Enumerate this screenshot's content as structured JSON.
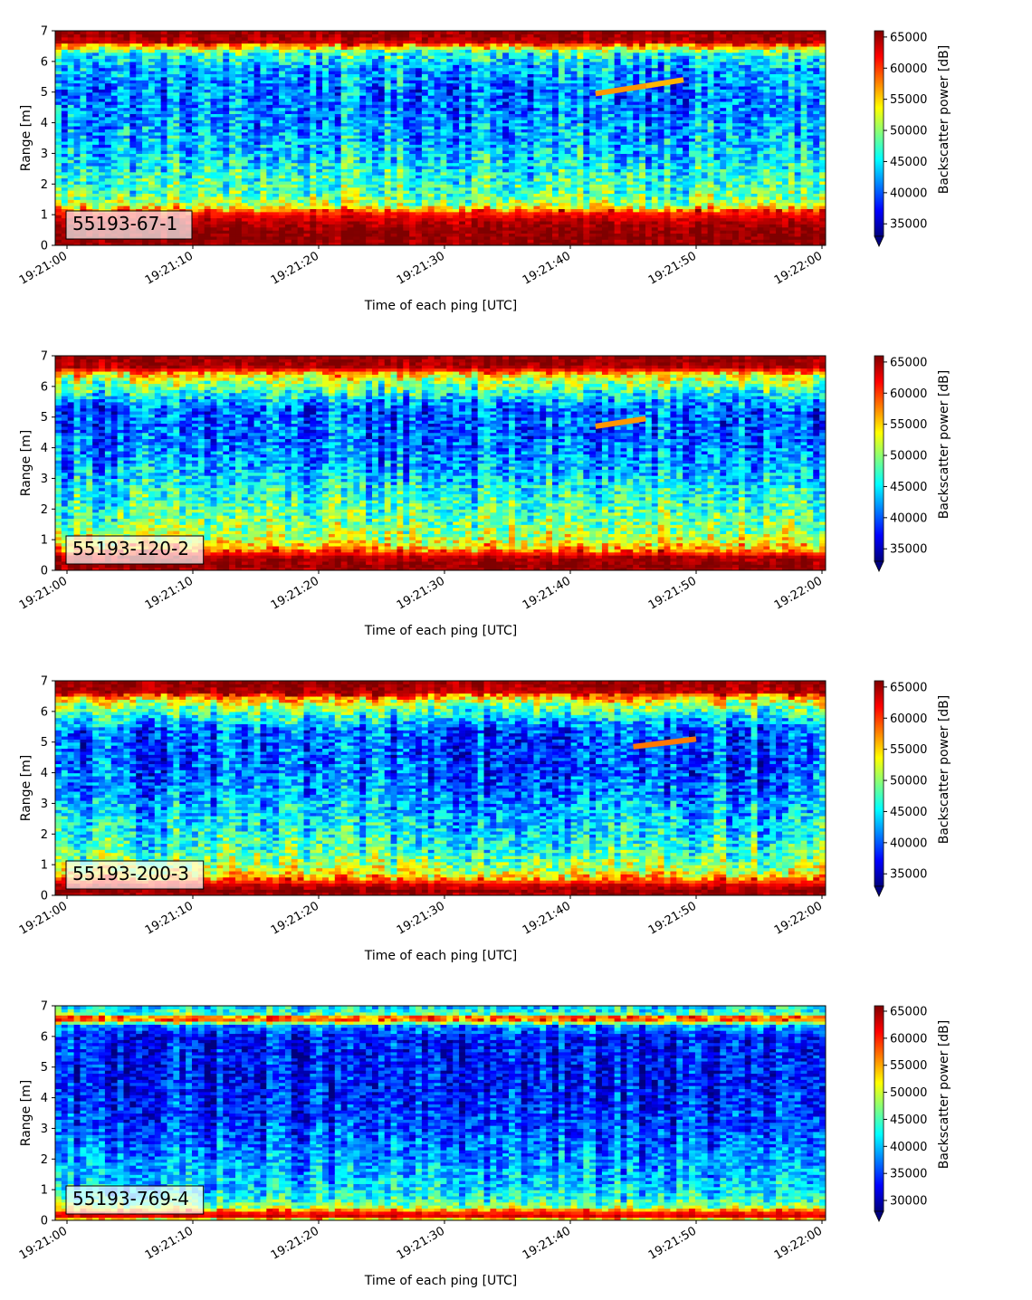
{
  "colors": {
    "jet": [
      "#00007f",
      "#0000ff",
      "#007fff",
      "#00ffff",
      "#7fff7f",
      "#ffff00",
      "#ff7f00",
      "#ff0000",
      "#7f0000"
    ],
    "label_box_border": "#000000",
    "axis": "#000000"
  },
  "chart_data": [
    {
      "type": "heatmap",
      "panel_label": "55193-67-1",
      "xlabel": "Time of each ping [UTC]",
      "ylabel": "Range [m]",
      "colorbar_label": "Backscatter power [dB]",
      "x_tick_labels": [
        "19:21:00",
        "19:21:10",
        "19:21:20",
        "19:21:30",
        "19:21:40",
        "19:21:50",
        "19:22:00"
      ],
      "x_range": [
        "19:21:00",
        "19:22:00"
      ],
      "y_ticks": [
        0,
        1,
        2,
        3,
        4,
        5,
        6,
        7
      ],
      "ylim": [
        0,
        7
      ],
      "clim": [
        33000,
        66000
      ],
      "colorbar_ticks": [
        35000,
        40000,
        45000,
        50000,
        55000,
        60000,
        65000
      ],
      "colormap": "jet",
      "profile": [
        {
          "range": 0.0,
          "power": 65000
        },
        {
          "range": 0.2,
          "power": 65500
        },
        {
          "range": 0.5,
          "power": 65500
        },
        {
          "range": 0.8,
          "power": 64000
        },
        {
          "range": 1.1,
          "power": 61000
        },
        {
          "range": 1.3,
          "power": 52000
        },
        {
          "range": 1.7,
          "power": 48000
        },
        {
          "range": 2.2,
          "power": 47000
        },
        {
          "range": 3.0,
          "power": 44000
        },
        {
          "range": 4.0,
          "power": 42000
        },
        {
          "range": 5.0,
          "power": 41000
        },
        {
          "range": 5.8,
          "power": 43000
        },
        {
          "range": 6.3,
          "power": 47000
        },
        {
          "range": 6.5,
          "power": 56000
        },
        {
          "range": 6.65,
          "power": 64000
        },
        {
          "range": 7.0,
          "power": 65500
        }
      ],
      "target_trace": [
        {
          "time": "19:21:42",
          "range": 4.95,
          "power": 57000
        },
        {
          "time": "19:21:46",
          "range": 5.2,
          "power": 56000
        },
        {
          "time": "19:21:49",
          "range": 5.4,
          "power": 50000
        }
      ]
    },
    {
      "type": "heatmap",
      "panel_label": "55193-120-2",
      "xlabel": "Time of each ping [UTC]",
      "ylabel": "Range [m]",
      "colorbar_label": "Backscatter power [dB]",
      "x_tick_labels": [
        "19:21:00",
        "19:21:10",
        "19:21:20",
        "19:21:30",
        "19:21:40",
        "19:21:50",
        "19:22:00"
      ],
      "x_range": [
        "19:21:00",
        "19:22:00"
      ],
      "y_ticks": [
        0,
        1,
        2,
        3,
        4,
        5,
        6,
        7
      ],
      "ylim": [
        0,
        7
      ],
      "clim": [
        33000,
        66000
      ],
      "colorbar_ticks": [
        35000,
        40000,
        45000,
        50000,
        55000,
        60000,
        65000
      ],
      "colormap": "jet",
      "profile": [
        {
          "range": 0.0,
          "power": 64000
        },
        {
          "range": 0.15,
          "power": 65500
        },
        {
          "range": 0.45,
          "power": 64000
        },
        {
          "range": 0.7,
          "power": 57000
        },
        {
          "range": 1.0,
          "power": 52000
        },
        {
          "range": 1.6,
          "power": 49000
        },
        {
          "range": 2.5,
          "power": 46000
        },
        {
          "range": 3.5,
          "power": 42000
        },
        {
          "range": 4.5,
          "power": 40000
        },
        {
          "range": 5.3,
          "power": 40000
        },
        {
          "range": 5.8,
          "power": 46000
        },
        {
          "range": 6.2,
          "power": 51000
        },
        {
          "range": 6.45,
          "power": 56000
        },
        {
          "range": 6.6,
          "power": 64000
        },
        {
          "range": 7.0,
          "power": 65500
        }
      ],
      "target_trace": [
        {
          "time": "19:21:42",
          "range": 4.7,
          "power": 57000
        },
        {
          "time": "19:21:46",
          "range": 4.95,
          "power": 57000
        }
      ]
    },
    {
      "type": "heatmap",
      "panel_label": "55193-200-3",
      "xlabel": "Time of each ping [UTC]",
      "ylabel": "Range [m]",
      "colorbar_label": "Backscatter power [dB]",
      "x_tick_labels": [
        "19:21:00",
        "19:21:10",
        "19:21:20",
        "19:21:30",
        "19:21:40",
        "19:21:50",
        "19:22:00"
      ],
      "x_range": [
        "19:21:00",
        "19:22:00"
      ],
      "y_ticks": [
        0,
        1,
        2,
        3,
        4,
        5,
        6,
        7
      ],
      "ylim": [
        0,
        7
      ],
      "clim": [
        33000,
        66000
      ],
      "colorbar_ticks": [
        35000,
        40000,
        45000,
        50000,
        55000,
        60000,
        65000
      ],
      "colormap": "jet",
      "profile": [
        {
          "range": 0.0,
          "power": 64000
        },
        {
          "range": 0.15,
          "power": 65500
        },
        {
          "range": 0.35,
          "power": 63000
        },
        {
          "range": 0.6,
          "power": 56000
        },
        {
          "range": 0.9,
          "power": 51000
        },
        {
          "range": 1.5,
          "power": 47000
        },
        {
          "range": 2.5,
          "power": 44000
        },
        {
          "range": 3.5,
          "power": 41000
        },
        {
          "range": 4.5,
          "power": 39500
        },
        {
          "range": 5.4,
          "power": 40000
        },
        {
          "range": 5.9,
          "power": 46000
        },
        {
          "range": 6.3,
          "power": 52000
        },
        {
          "range": 6.5,
          "power": 58000
        },
        {
          "range": 6.65,
          "power": 64000
        },
        {
          "range": 7.0,
          "power": 65500
        }
      ],
      "target_trace": [
        {
          "time": "19:21:45",
          "range": 4.85,
          "power": 58000
        },
        {
          "time": "19:21:50",
          "range": 5.1,
          "power": 46000
        }
      ]
    },
    {
      "type": "heatmap",
      "panel_label": "55193-769-4",
      "xlabel": "Time of each ping [UTC]",
      "ylabel": "Range [m]",
      "colorbar_label": "Backscatter power [dB]",
      "x_tick_labels": [
        "19:21:00",
        "19:21:10",
        "19:21:20",
        "19:21:30",
        "19:21:40",
        "19:21:50",
        "19:22:00"
      ],
      "x_range": [
        "19:21:00",
        "19:22:00"
      ],
      "y_ticks": [
        0,
        1,
        2,
        3,
        4,
        5,
        6,
        7
      ],
      "ylim": [
        0,
        7
      ],
      "clim": [
        28000,
        66000
      ],
      "colorbar_ticks": [
        30000,
        35000,
        40000,
        45000,
        50000,
        55000,
        60000,
        65000
      ],
      "colormap": "jet",
      "profile": [
        {
          "range": 0.0,
          "power": 48000
        },
        {
          "range": 0.15,
          "power": 62000
        },
        {
          "range": 0.28,
          "power": 60000
        },
        {
          "range": 0.45,
          "power": 48000
        },
        {
          "range": 0.7,
          "power": 43000
        },
        {
          "range": 1.2,
          "power": 40000
        },
        {
          "range": 2.0,
          "power": 38000
        },
        {
          "range": 3.0,
          "power": 35000
        },
        {
          "range": 4.0,
          "power": 33500
        },
        {
          "range": 5.0,
          "power": 33000
        },
        {
          "range": 6.0,
          "power": 33000
        },
        {
          "range": 6.35,
          "power": 38000
        },
        {
          "range": 6.5,
          "power": 52000
        },
        {
          "range": 6.6,
          "power": 62000
        },
        {
          "range": 6.75,
          "power": 45000
        },
        {
          "range": 7.0,
          "power": 40000
        }
      ],
      "target_trace": []
    }
  ]
}
